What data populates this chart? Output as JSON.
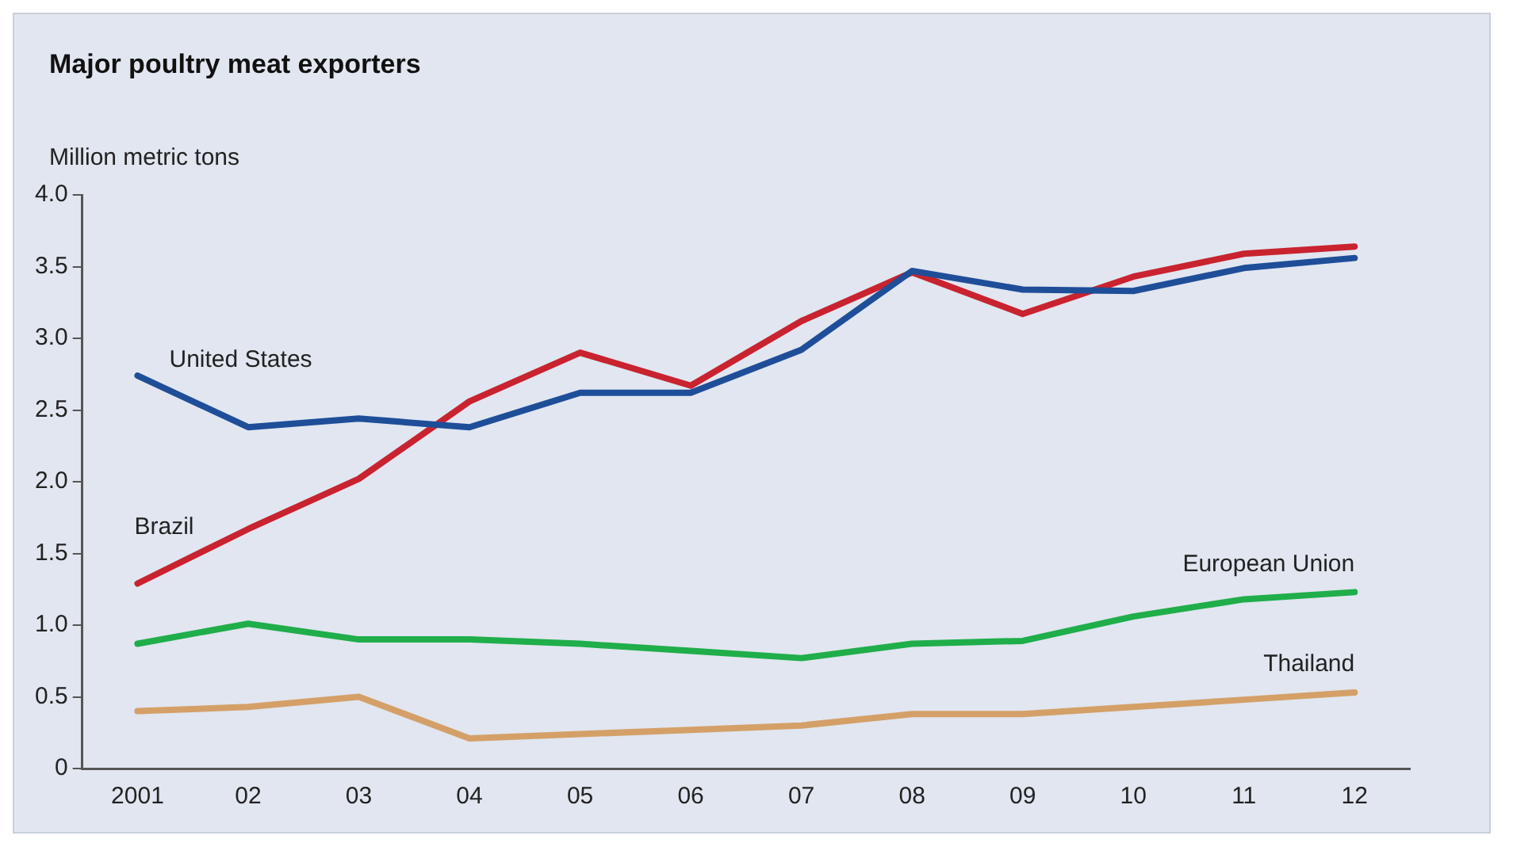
{
  "chart_data": {
    "type": "line",
    "title": "Major poultry meat exporters",
    "ylabel": "Million metric tons",
    "categories": [
      "2001",
      "02",
      "03",
      "04",
      "05",
      "06",
      "07",
      "08",
      "09",
      "10",
      "11",
      "12"
    ],
    "series": [
      {
        "name": "United States",
        "color": "#1f4e99",
        "values": [
          2.74,
          2.38,
          2.44,
          2.38,
          2.62,
          2.62,
          2.92,
          3.47,
          3.34,
          3.33,
          3.49,
          3.56
        ]
      },
      {
        "name": "Brazil",
        "color": "#c8232f",
        "values": [
          1.29,
          1.67,
          2.02,
          2.56,
          2.9,
          2.67,
          3.12,
          3.46,
          3.17,
          3.43,
          3.59,
          3.64
        ]
      },
      {
        "name": "European Union",
        "color": "#1fae4a",
        "values": [
          0.87,
          1.01,
          0.9,
          0.9,
          0.87,
          0.82,
          0.77,
          0.87,
          0.89,
          1.06,
          1.18,
          1.23
        ]
      },
      {
        "name": "Thailand",
        "color": "#d4a068",
        "values": [
          0.4,
          0.43,
          0.5,
          0.21,
          0.24,
          0.27,
          0.3,
          0.38,
          0.38,
          0.43,
          0.48,
          0.53
        ]
      }
    ],
    "ylim": [
      0,
      4
    ],
    "yticks": [
      0,
      {
        "value": 0.5,
        "label": "0.5"
      },
      {
        "value": 1,
        "label": "1.0"
      },
      {
        "value": 1.5,
        "label": "1.5"
      },
      {
        "value": 2,
        "label": "2.0"
      },
      {
        "value": 2.5,
        "label": "2.5"
      },
      {
        "value": 3,
        "label": "3.0"
      },
      {
        "value": 3.5,
        "label": "3.5"
      },
      {
        "value": 4,
        "label": "4.0"
      }
    ],
    "grid": false,
    "legend": false,
    "marker": "none",
    "line_style": "solid"
  }
}
